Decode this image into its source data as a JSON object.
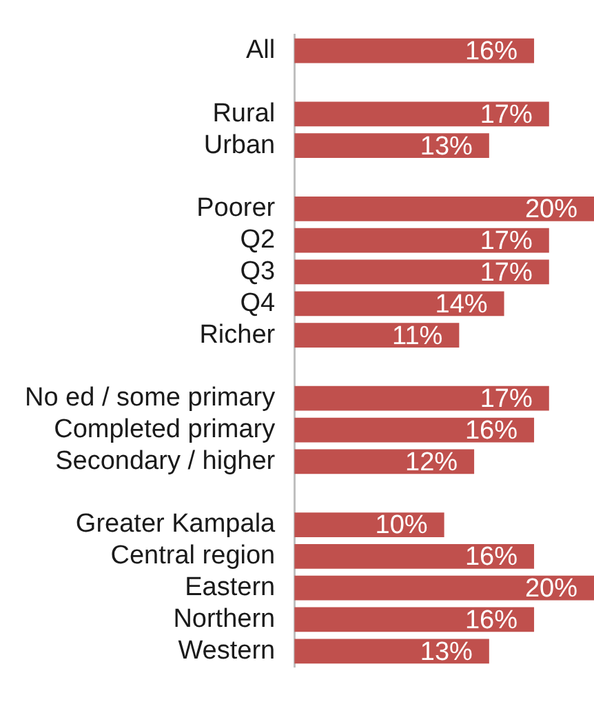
{
  "chart_data": {
    "type": "bar",
    "orientation": "horizontal",
    "categories": [
      "All",
      null,
      "Rural",
      "Urban",
      null,
      "Poorer",
      "Q2",
      "Q3",
      "Q4",
      "Richer",
      null,
      "No ed / some primary",
      "Completed primary",
      "Secondary / higher",
      null,
      "Greater Kampala",
      "Central region",
      "Eastern",
      "Northern",
      "Western"
    ],
    "values": [
      16,
      null,
      17,
      13,
      null,
      20,
      17,
      17,
      14,
      11,
      null,
      17,
      16,
      12,
      null,
      10,
      16,
      20,
      16,
      13
    ],
    "value_labels": [
      "16%",
      null,
      "17%",
      "13%",
      null,
      "20%",
      "17%",
      "17%",
      "14%",
      "11%",
      null,
      "17%",
      "16%",
      "12%",
      null,
      "10%",
      "16%",
      "20%",
      "16%",
      "13%"
    ],
    "color": "#c0504d",
    "legend": false,
    "grid": false
  }
}
